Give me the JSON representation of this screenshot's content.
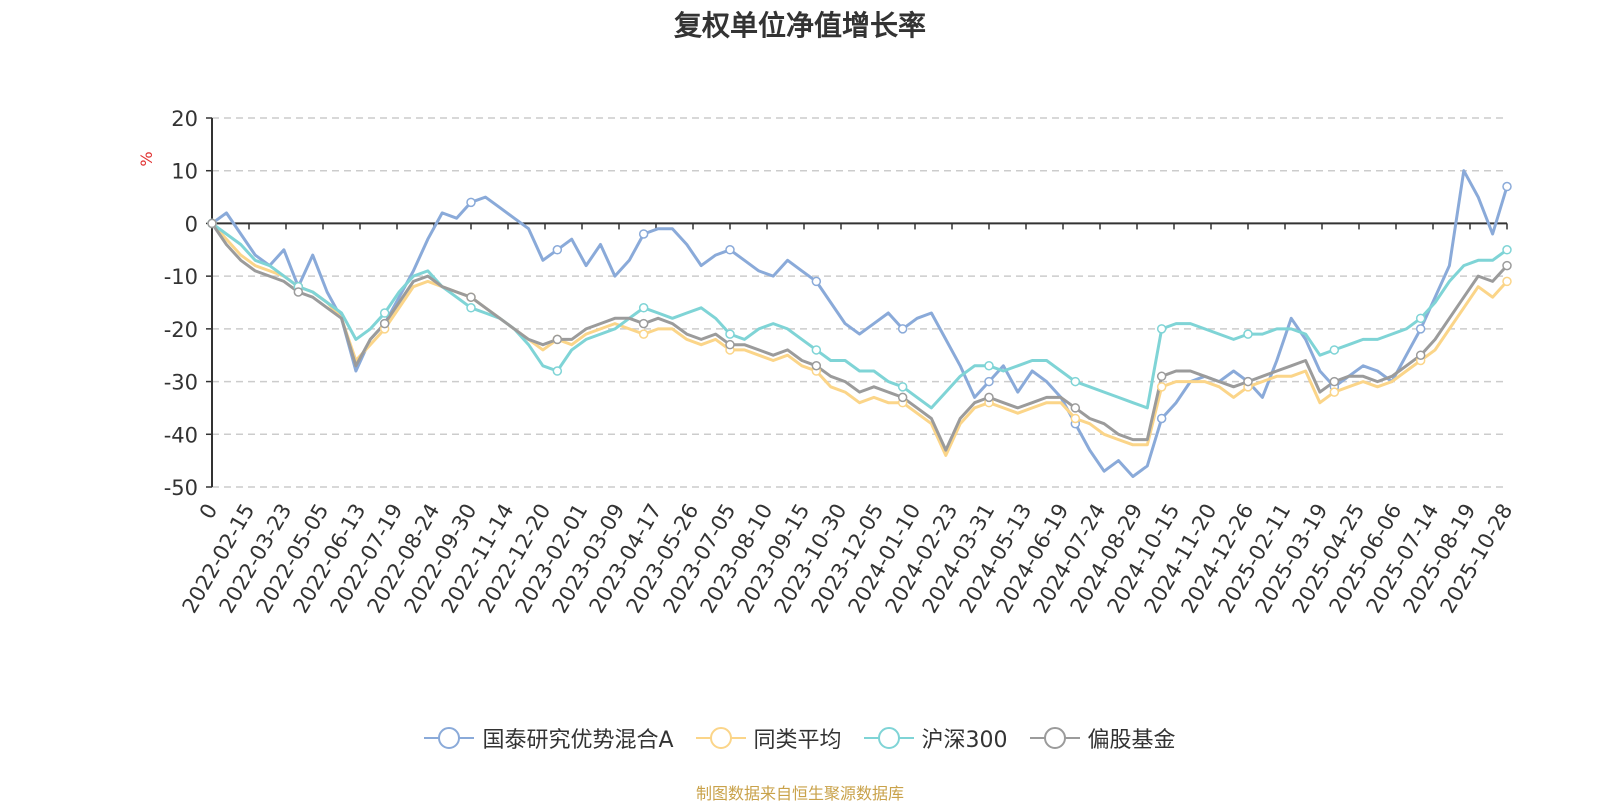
{
  "chart_data": {
    "type": "line",
    "title": "复权单位净值增长率",
    "ylabel": "%",
    "xlabel": "",
    "ylim": [
      -50,
      20
    ],
    "yticks": [
      20,
      10,
      0,
      -10,
      -20,
      -30,
      -40,
      -50
    ],
    "grid": true,
    "legend_position": "bottom-center",
    "x_tick_labels": [
      "0",
      "2022-02-15",
      "2022-03-23",
      "2022-05-05",
      "2022-06-13",
      "2022-07-19",
      "2022-08-24",
      "2022-09-30",
      "2022-11-14",
      "2022-12-20",
      "2023-02-01",
      "2023-03-09",
      "2023-04-17",
      "2023-05-26",
      "2023-07-05",
      "2023-08-10",
      "2023-09-15",
      "2023-10-30",
      "2023-12-05",
      "2024-01-10",
      "2024-02-23",
      "2024-03-31",
      "2024-05-13",
      "2024-06-19",
      "2024-07-24",
      "2024-08-29",
      "2024-10-15",
      "2024-11-20",
      "2024-12-26",
      "2025-02-11",
      "2025-03-19",
      "2025-04-25",
      "2025-06-06",
      "2025-07-14",
      "2025-08-19",
      "2025-10-28"
    ],
    "series": [
      {
        "name": "国泰研究优势混合A",
        "color": "#8aaad9",
        "values": [
          0,
          2,
          -2,
          -6,
          -8,
          -5,
          -12,
          -6,
          -13,
          -18,
          -28,
          -22,
          -19,
          -14,
          -9,
          -3,
          2,
          1,
          4,
          5,
          3,
          1,
          -1,
          -7,
          -5,
          -3,
          -8,
          -4,
          -10,
          -7,
          -2,
          -1,
          -1,
          -4,
          -8,
          -6,
          -5,
          -7,
          -9,
          -10,
          -7,
          -9,
          -11,
          -15,
          -19,
          -21,
          -19,
          -17,
          -20,
          -18,
          -17,
          -22,
          -27,
          -33,
          -30,
          -27,
          -32,
          -28,
          -30,
          -33,
          -38,
          -43,
          -47,
          -45,
          -48,
          -46,
          -37,
          -34,
          -30,
          -29,
          -30,
          -28,
          -30,
          -33,
          -26,
          -18,
          -22,
          -28,
          -31,
          -29,
          -27,
          -28,
          -30,
          -25,
          -20,
          -14,
          -8,
          10,
          5,
          -2,
          7
        ]
      },
      {
        "name": "同类平均",
        "color": "#fbd589",
        "values": [
          0,
          -3,
          -6,
          -8,
          -9,
          -10,
          -12,
          -13,
          -15,
          -18,
          -26,
          -23,
          -20,
          -16,
          -12,
          -11,
          -12,
          -13,
          -14,
          -16,
          -18,
          -20,
          -22,
          -24,
          -22,
          -23,
          -21,
          -20,
          -19,
          -20,
          -21,
          -20,
          -20,
          -22,
          -23,
          -22,
          -24,
          -24,
          -25,
          -26,
          -25,
          -27,
          -28,
          -31,
          -32,
          -34,
          -33,
          -34,
          -34,
          -36,
          -38,
          -44,
          -38,
          -35,
          -34,
          -35,
          -36,
          -35,
          -34,
          -34,
          -37,
          -38,
          -40,
          -41,
          -42,
          -42,
          -31,
          -30,
          -30,
          -30,
          -31,
          -33,
          -31,
          -30,
          -29,
          -29,
          -28,
          -34,
          -32,
          -31,
          -30,
          -31,
          -30,
          -28,
          -26,
          -24,
          -20,
          -16,
          -12,
          -14,
          -11
        ]
      },
      {
        "name": "沪深300",
        "color": "#7fd4d6",
        "values": [
          0,
          -2,
          -4,
          -7,
          -8,
          -10,
          -12,
          -13,
          -15,
          -17,
          -22,
          -20,
          -17,
          -13,
          -10,
          -9,
          -12,
          -14,
          -16,
          -17,
          -18,
          -20,
          -23,
          -27,
          -28,
          -24,
          -22,
          -21,
          -20,
          -18,
          -16,
          -17,
          -18,
          -17,
          -16,
          -18,
          -21,
          -22,
          -20,
          -19,
          -20,
          -22,
          -24,
          -26,
          -26,
          -28,
          -28,
          -30,
          -31,
          -33,
          -35,
          -32,
          -29,
          -27,
          -27,
          -28,
          -27,
          -26,
          -26,
          -28,
          -30,
          -31,
          -32,
          -33,
          -34,
          -35,
          -20,
          -19,
          -19,
          -20,
          -21,
          -22,
          -21,
          -21,
          -20,
          -20,
          -21,
          -25,
          -24,
          -23,
          -22,
          -22,
          -21,
          -20,
          -18,
          -15,
          -11,
          -8,
          -7,
          -7,
          -5
        ]
      },
      {
        "name": "偏股基金",
        "color": "#9b9b9b",
        "values": [
          0,
          -4,
          -7,
          -9,
          -10,
          -11,
          -13,
          -14,
          -16,
          -18,
          -27,
          -22,
          -19,
          -15,
          -11,
          -10,
          -12,
          -13,
          -14,
          -16,
          -18,
          -20,
          -22,
          -23,
          -22,
          -22,
          -20,
          -19,
          -18,
          -18,
          -19,
          -18,
          -19,
          -21,
          -22,
          -21,
          -23,
          -23,
          -24,
          -25,
          -24,
          -26,
          -27,
          -29,
          -30,
          -32,
          -31,
          -32,
          -33,
          -35,
          -37,
          -43,
          -37,
          -34,
          -33,
          -34,
          -35,
          -34,
          -33,
          -33,
          -35,
          -37,
          -38,
          -40,
          -41,
          -41,
          -29,
          -28,
          -28,
          -29,
          -30,
          -31,
          -30,
          -29,
          -28,
          -27,
          -26,
          -32,
          -30,
          -29,
          -29,
          -30,
          -29,
          -27,
          -25,
          -22,
          -18,
          -14,
          -10,
          -11,
          -8
        ]
      }
    ]
  },
  "footer": {
    "source_note": "制图数据来自恒生聚源数据库"
  }
}
